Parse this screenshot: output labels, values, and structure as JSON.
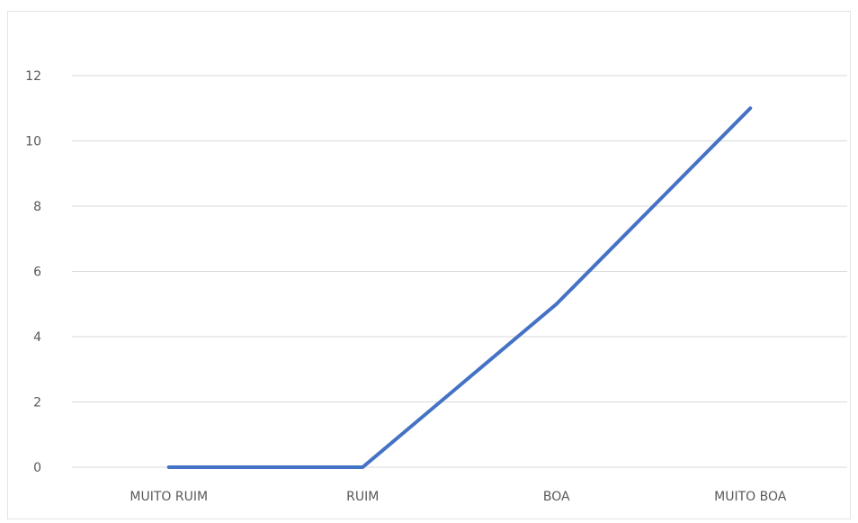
{
  "chart_data": {
    "type": "line",
    "categories": [
      "MUITO RUIM",
      "RUIM",
      "BOA",
      "MUITO BOA"
    ],
    "series": [
      {
        "values": [
          0,
          0,
          5,
          11
        ],
        "color": "#4472c4"
      }
    ],
    "ylim": [
      0,
      12
    ],
    "yticks": [
      0,
      2,
      4,
      6,
      8,
      10,
      12
    ],
    "grid": true,
    "legend": "none"
  }
}
